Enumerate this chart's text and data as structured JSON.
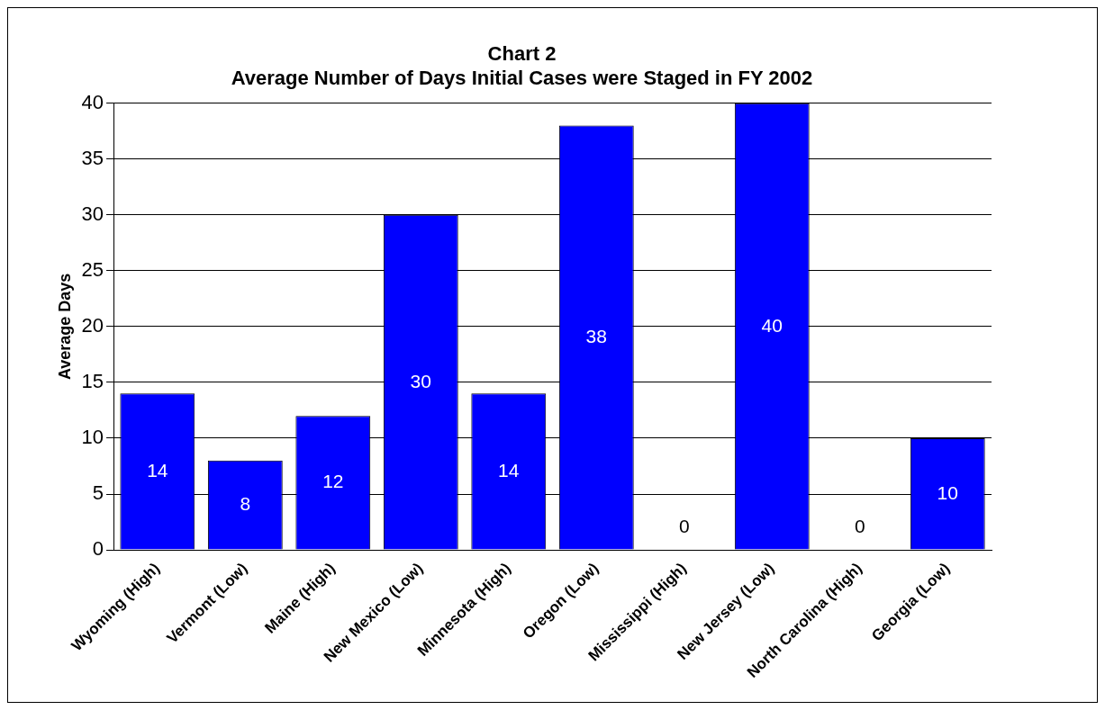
{
  "chart_data": {
    "type": "bar",
    "title": [
      "Chart 2",
      "Average Number of Days Initial Cases were Staged in FY 2002"
    ],
    "ylabel": "Average Days",
    "categories": [
      "Wyoming (High)",
      "Vermont (Low)",
      "Maine (High)",
      "New Mexico (Low)",
      "Minnesota (High)",
      "Oregon (Low)",
      "Mississippi (High)",
      "New Jersey (Low)",
      "North Carolina (High)",
      "Georgia (Low)"
    ],
    "values": [
      14,
      8,
      12,
      30,
      14,
      38,
      0,
      40,
      0,
      10
    ],
    "color": "#0000ff",
    "ylim": [
      0,
      40
    ],
    "yticks": [
      0,
      5,
      10,
      15,
      20,
      25,
      30,
      35,
      40
    ],
    "grid": "y",
    "data_labels": true,
    "legend": false
  }
}
